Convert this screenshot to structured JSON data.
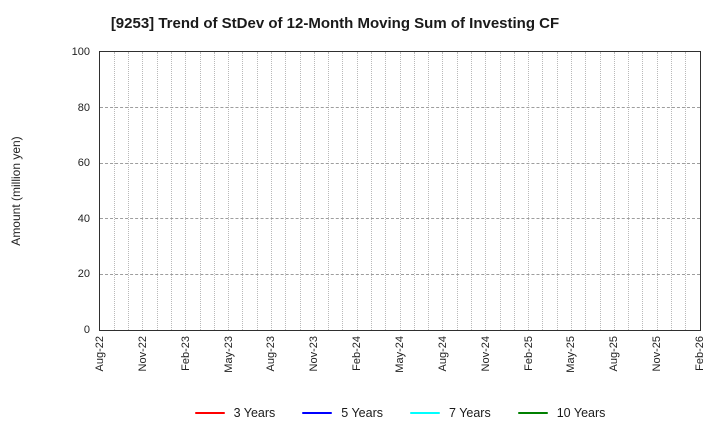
{
  "figure": {
    "background": "#ffffff",
    "frame_color": "#2f2f2f",
    "grid_v_color": "#b9b9b9",
    "grid_h_color": "#9e9e9e"
  },
  "chart_data": {
    "type": "line",
    "title": "[9253]  Trend of StDev of 12-Month Moving Sum of Investing CF",
    "xlabel": "",
    "ylabel": "Amount (million yen)",
    "ylim": [
      0,
      100
    ],
    "yticks": [
      0,
      20,
      40,
      60,
      80,
      100
    ],
    "x_tick_labels": [
      "Aug-22",
      "Nov-22",
      "Feb-23",
      "May-23",
      "Aug-23",
      "Nov-23",
      "Feb-24",
      "May-24",
      "Aug-24",
      "Nov-24",
      "Feb-25",
      "May-25",
      "Aug-25",
      "Nov-25",
      "Feb-26"
    ],
    "x_months_span": 42,
    "x_label_every_months": 3,
    "grid": "on (vertical dotted monthly, horizontal dashed every 20)",
    "legend_position": "bottom-center",
    "series": [
      {
        "name": "3 Years",
        "color": "#ff0000",
        "values": []
      },
      {
        "name": "5 Years",
        "color": "#0000ff",
        "values": []
      },
      {
        "name": "7 Years",
        "color": "#00ffff",
        "values": []
      },
      {
        "name": "10 Years",
        "color": "#008000",
        "values": []
      }
    ],
    "plotted_points": "none - plot area is empty (no data drawn)"
  }
}
